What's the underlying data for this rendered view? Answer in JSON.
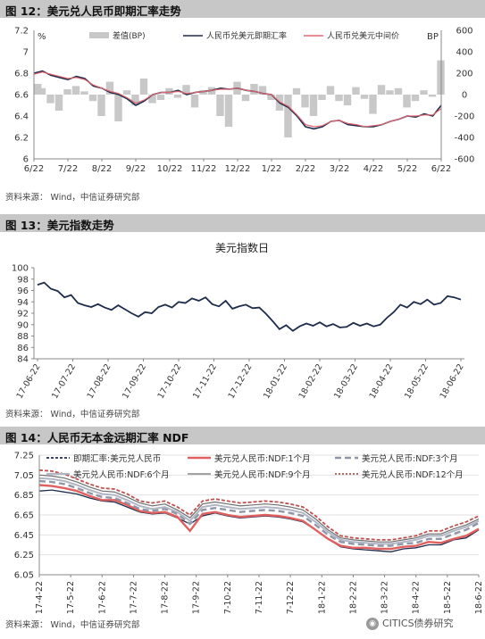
{
  "figures": [
    {
      "title": "图 12：美元兑人民币即期汇率走势",
      "source": "资料来源：  Wind，中信证券研究部"
    },
    {
      "title": "图 13：美元指数走势",
      "source": "资料来源：  Wind，中信证券研究部"
    },
    {
      "title": "图 14：人民币无本金远期汇率 NDF",
      "source": "资料来源：  Wind，中信证券研究部"
    }
  ],
  "watermark": {
    "text": "CITICS债券研究",
    "icon": "wechat-icon"
  },
  "chart_data": [
    {
      "type": "line",
      "left_unit": "%",
      "right_unit": "BP",
      "x_ticks": [
        "6/22",
        "7/22",
        "8/22",
        "9/22",
        "10/22",
        "11/22",
        "12/22",
        "1/22",
        "2/22",
        "3/22",
        "4/22",
        "5/22",
        "6/22"
      ],
      "ylim": [
        6,
        7.2
      ],
      "y_ticks": [
        "6",
        "6.2",
        "6.4",
        "6.6",
        "6.8",
        "7",
        "7.2"
      ],
      "y2lim": [
        -600,
        600
      ],
      "y2_ticks": [
        "-600",
        "-400",
        "-200",
        "0",
        "200",
        "400",
        "600"
      ],
      "legend": [
        "差值(BP)",
        "人民币兑美元即期汇率",
        "人民币兑美元中间价"
      ],
      "series": [
        {
          "name": "人民币兑美元即期汇率",
          "axis": "left",
          "color": "#1f2d4d",
          "values": [
            6.8,
            6.82,
            6.78,
            6.76,
            6.74,
            6.77,
            6.75,
            6.68,
            6.66,
            6.62,
            6.6,
            6.56,
            6.5,
            6.54,
            6.6,
            6.62,
            6.62,
            6.64,
            6.6,
            6.62,
            6.63,
            6.64,
            6.66,
            6.65,
            6.66,
            6.64,
            6.63,
            6.61,
            6.6,
            6.52,
            6.48,
            6.4,
            6.3,
            6.28,
            6.3,
            6.35,
            6.36,
            6.32,
            6.31,
            6.3,
            6.3,
            6.32,
            6.35,
            6.37,
            6.4,
            6.39,
            6.42,
            6.4,
            6.5
          ]
        },
        {
          "name": "人民币兑美元中间价",
          "axis": "left",
          "color": "#e06670",
          "values": [
            6.79,
            6.81,
            6.79,
            6.77,
            6.75,
            6.76,
            6.74,
            6.69,
            6.66,
            6.63,
            6.61,
            6.57,
            6.52,
            6.55,
            6.6,
            6.62,
            6.62,
            6.63,
            6.61,
            6.62,
            6.63,
            6.64,
            6.65,
            6.65,
            6.66,
            6.64,
            6.63,
            6.61,
            6.6,
            6.53,
            6.49,
            6.41,
            6.32,
            6.3,
            6.31,
            6.35,
            6.36,
            6.33,
            6.32,
            6.3,
            6.31,
            6.32,
            6.35,
            6.37,
            6.4,
            6.4,
            6.41,
            6.41,
            6.47
          ]
        },
        {
          "name": "差值(BP)",
          "axis": "right",
          "type": "area",
          "color": "#c8c8c8",
          "values": [
            100,
            60,
            -80,
            -150,
            50,
            80,
            30,
            -60,
            -200,
            120,
            -250,
            40,
            -100,
            150,
            -80,
            -50,
            60,
            -30,
            90,
            -120,
            40,
            70,
            -200,
            -300,
            120,
            -60,
            100,
            80,
            -50,
            -150,
            -400,
            60,
            -120,
            -200,
            -50,
            80,
            -60,
            -100,
            70,
            -40,
            -180,
            90,
            40,
            60,
            -120,
            -60,
            40,
            -20,
            320
          ]
        }
      ]
    },
    {
      "type": "line",
      "title": "美元指数日",
      "x_ticks": [
        "17-06-22",
        "17-07-22",
        "17-08-22",
        "17-09-22",
        "17-10-22",
        "17-11-22",
        "17-12-22",
        "18-01-22",
        "18-02-22",
        "18-03-22",
        "18-04-22",
        "18-05-22",
        "18-06-22"
      ],
      "ylim": [
        84,
        100
      ],
      "y_ticks": [
        "84",
        "86",
        "88",
        "90",
        "92",
        "94",
        "96",
        "98",
        "100"
      ],
      "series": [
        {
          "name": "美元指数日",
          "color": "#1f2d4d",
          "values": [
            97.0,
            97.4,
            96.3,
            95.9,
            94.8,
            95.2,
            93.8,
            93.4,
            93.1,
            93.6,
            93.0,
            92.6,
            93.4,
            92.7,
            92.0,
            91.4,
            92.2,
            92.0,
            93.1,
            93.5,
            93.0,
            94.0,
            93.8,
            94.6,
            94.2,
            94.8,
            93.6,
            93.2,
            94.2,
            92.8,
            93.2,
            93.5,
            92.9,
            93.0,
            91.9,
            90.6,
            89.2,
            89.9,
            88.9,
            89.7,
            90.2,
            89.8,
            90.4,
            89.7,
            90.1,
            89.5,
            89.6,
            90.3,
            89.8,
            90.2,
            89.7,
            90.0,
            91.2,
            92.2,
            93.5,
            93.0,
            94.0,
            93.6,
            94.4,
            93.5,
            93.8,
            95.0,
            94.8,
            94.4
          ]
        }
      ]
    },
    {
      "type": "line",
      "x_ticks": [
        "17-4-22",
        "17-5-22",
        "17-6-22",
        "17-7-22",
        "17-8-22",
        "17-9-22",
        "17-10-22",
        "17-11-22",
        "17-12-22",
        "18-1-22",
        "18-2-22",
        "18-3-22",
        "18-4-22",
        "18-5-22",
        "18-6-22"
      ],
      "ylim": [
        6.05,
        7.25
      ],
      "y_ticks": [
        "6.05",
        "6.25",
        "6.45",
        "6.65",
        "6.85",
        "7.05",
        "7.25"
      ],
      "legend": [
        "即期汇率:美元兑人民币",
        "美元兑人民币:NDF:1个月",
        "美元兑人民币:NDF:3个月",
        "美元兑人民币:NDF:6个月",
        "美元兑人民币:NDF:9个月",
        "美元兑人民币:NDF:12个月"
      ],
      "series": [
        {
          "name": "即期汇率:美元兑人民币",
          "color": "#1f2d4d",
          "values": [
            6.89,
            6.9,
            6.88,
            6.86,
            6.82,
            6.79,
            6.78,
            6.73,
            6.68,
            6.66,
            6.67,
            6.62,
            6.56,
            6.64,
            6.67,
            6.64,
            6.62,
            6.63,
            6.64,
            6.63,
            6.61,
            6.58,
            6.5,
            6.41,
            6.33,
            6.31,
            6.3,
            6.29,
            6.28,
            6.31,
            6.32,
            6.35,
            6.35,
            6.4,
            6.42,
            6.5
          ]
        },
        {
          "name": "美元兑人民币:NDF:1个月",
          "color": "#e06060",
          "values": [
            6.95,
            6.94,
            6.92,
            6.89,
            6.84,
            6.8,
            6.8,
            6.75,
            6.69,
            6.67,
            6.68,
            6.63,
            6.49,
            6.66,
            6.68,
            6.65,
            6.63,
            6.64,
            6.65,
            6.64,
            6.62,
            6.59,
            6.5,
            6.41,
            6.34,
            6.32,
            6.32,
            6.31,
            6.31,
            6.33,
            6.34,
            6.38,
            6.37,
            6.41,
            6.44,
            6.51
          ]
        },
        {
          "name": "美元兑人民币:NDF:3个月",
          "color": "#8f96a8",
          "values": [
            6.99,
            6.98,
            6.96,
            6.92,
            6.87,
            6.83,
            6.82,
            6.77,
            6.71,
            6.69,
            6.71,
            6.66,
            6.56,
            6.7,
            6.72,
            6.7,
            6.68,
            6.69,
            6.7,
            6.69,
            6.67,
            6.64,
            6.55,
            6.45,
            6.38,
            6.36,
            6.35,
            6.34,
            6.34,
            6.36,
            6.37,
            6.41,
            6.41,
            6.46,
            6.5,
            6.57
          ]
        },
        {
          "name": "美元兑人民币:NDF:6个月",
          "color": "#b0b6c4",
          "values": [
            7.02,
            7.01,
            6.99,
            6.95,
            6.9,
            6.86,
            6.85,
            6.8,
            6.74,
            6.71,
            6.73,
            6.68,
            6.59,
            6.73,
            6.75,
            6.73,
            6.71,
            6.72,
            6.73,
            6.72,
            6.7,
            6.67,
            6.58,
            6.48,
            6.4,
            6.38,
            6.37,
            6.36,
            6.36,
            6.38,
            6.4,
            6.44,
            6.44,
            6.49,
            6.53,
            6.59
          ]
        },
        {
          "name": "美元兑人民币:NDF:9个月",
          "color": "#6e6e6e",
          "values": [
            7.05,
            7.04,
            7.02,
            6.98,
            6.93,
            6.89,
            6.88,
            6.83,
            6.77,
            6.74,
            6.76,
            6.7,
            6.62,
            6.76,
            6.78,
            6.76,
            6.74,
            6.75,
            6.76,
            6.75,
            6.73,
            6.7,
            6.61,
            6.5,
            6.42,
            6.4,
            6.39,
            6.38,
            6.38,
            6.4,
            6.42,
            6.46,
            6.46,
            6.51,
            6.55,
            6.61
          ]
        },
        {
          "name": "美元兑人民币:NDF:12个月",
          "color": "#c0504d",
          "values": [
            7.1,
            7.09,
            7.06,
            7.01,
            6.96,
            6.92,
            6.91,
            6.86,
            6.79,
            6.77,
            6.79,
            6.73,
            6.65,
            6.79,
            6.81,
            6.79,
            6.77,
            6.78,
            6.79,
            6.78,
            6.76,
            6.73,
            6.64,
            6.53,
            6.44,
            6.42,
            6.41,
            6.4,
            6.4,
            6.42,
            6.44,
            6.49,
            6.49,
            6.54,
            6.58,
            6.64
          ]
        }
      ]
    }
  ]
}
